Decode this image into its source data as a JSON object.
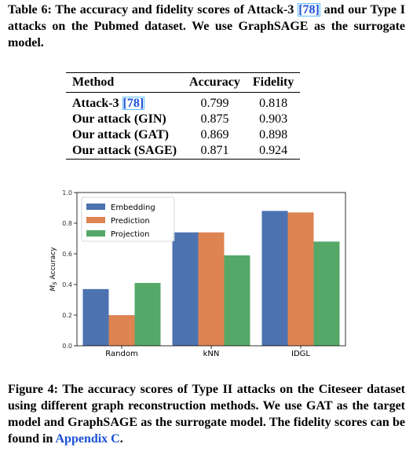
{
  "table_caption": {
    "text_before": "Table 6: The accuracy and fidelity scores of Attack-3 ",
    "ref": "[78]",
    "text_after": " and our Type I attacks on the Pubmed dataset. We use GraphSAGE as the surrogate model."
  },
  "table": {
    "headers": [
      "Method",
      "Accuracy",
      "Fidelity"
    ],
    "rows": [
      {
        "method": "Attack-3 ",
        "ref": "[78]",
        "accuracy": "0.799",
        "fidelity": "0.818"
      },
      {
        "method": "Our attack (GIN)",
        "ref": "",
        "accuracy": "0.875",
        "fidelity": "0.903"
      },
      {
        "method": "Our attack (GAT)",
        "ref": "",
        "accuracy": "0.869",
        "fidelity": "0.898"
      },
      {
        "method": "Our attack (SAGE)",
        "ref": "",
        "accuracy": "0.871",
        "fidelity": "0.924"
      }
    ]
  },
  "chart_data": {
    "type": "bar",
    "categories": [
      "Random",
      "kNN",
      "IDGL"
    ],
    "series": [
      {
        "name": "Embedding",
        "color": "#4c72b0",
        "values": [
          0.37,
          0.74,
          0.88
        ]
      },
      {
        "name": "Prediction",
        "color": "#dd8452",
        "values": [
          0.2,
          0.74,
          0.87
        ]
      },
      {
        "name": "Projection",
        "color": "#55a868",
        "values": [
          0.41,
          0.59,
          0.68
        ]
      }
    ],
    "ylabel_main": "M",
    "ylabel_sub": "S",
    "ylabel_rest": " Accuracy",
    "ylim": [
      0.0,
      1.0
    ],
    "yticks": [
      "0.0",
      "0.2",
      "0.4",
      "0.6",
      "0.8",
      "1.0"
    ],
    "grid": false,
    "legend_position": "top-left"
  },
  "figure_caption": {
    "text_before": "Figure 4: The accuracy scores of Type II attacks on the Citeseer dataset using different graph reconstruction methods. We use GAT as the target model and GraphSAGE as the surrogate model. The fidelity scores can be found in ",
    "ref": "Appendix C",
    "text_after": "."
  }
}
